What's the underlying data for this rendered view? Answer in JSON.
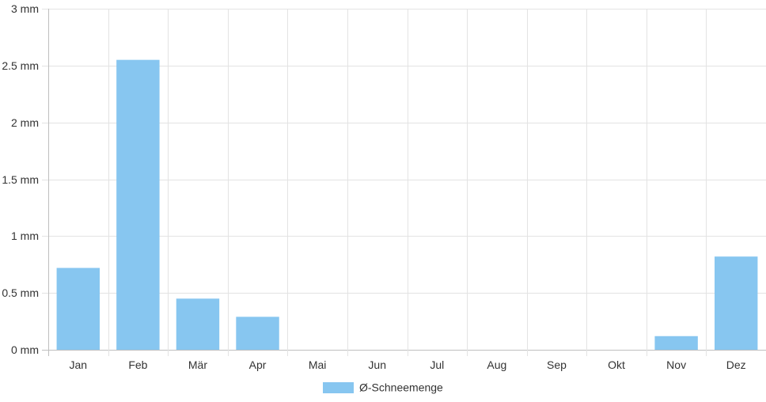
{
  "chart_data": {
    "type": "bar",
    "categories": [
      "Jan",
      "Feb",
      "Mär",
      "Apr",
      "Mai",
      "Jun",
      "Jul",
      "Aug",
      "Sep",
      "Okt",
      "Nov",
      "Dez"
    ],
    "series": [
      {
        "name": "Ø-Schneemenge",
        "values": [
          0.72,
          2.55,
          0.45,
          0.29,
          0,
          0,
          0,
          0,
          0,
          0,
          0.12,
          0.82
        ],
        "color": "#87c6f0"
      }
    ],
    "yunit": "mm",
    "ylim": [
      0,
      3
    ],
    "yticks": [
      {
        "value": 0,
        "label": "0 mm"
      },
      {
        "value": 0.5,
        "label": "0.5 mm"
      },
      {
        "value": 1,
        "label": "1 mm"
      },
      {
        "value": 1.5,
        "label": "1.5 mm"
      },
      {
        "value": 2,
        "label": "2 mm"
      },
      {
        "value": 2.5,
        "label": "2.5 mm"
      },
      {
        "value": 3,
        "label": "3 mm"
      }
    ],
    "grid": true,
    "legend_position": "bottom"
  }
}
